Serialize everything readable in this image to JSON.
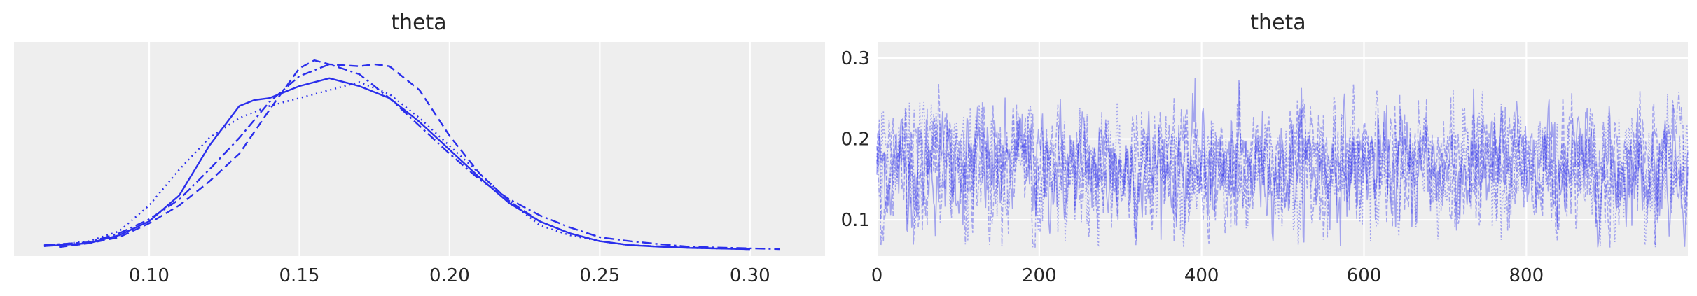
{
  "chart_data": [
    {
      "type": "line",
      "title": "theta",
      "xlabel": "",
      "ylabel": "",
      "xlim": [
        0.055,
        0.325
      ],
      "ylim": [
        0,
        1
      ],
      "x_ticks": [
        0.1,
        0.15,
        0.2,
        0.25,
        0.3
      ],
      "x_tick_labels": [
        "0.10",
        "0.15",
        "0.20",
        "0.25",
        "0.30"
      ],
      "y_ticks_shown": false,
      "grid": true,
      "color": "#2a2eec",
      "series": [
        {
          "line_style": "solid",
          "x": [
            0.065,
            0.08,
            0.09,
            0.1,
            0.11,
            0.12,
            0.13,
            0.135,
            0.14,
            0.15,
            0.16,
            0.17,
            0.18,
            0.19,
            0.2,
            0.21,
            0.22,
            0.23,
            0.24,
            0.25,
            0.26,
            0.27,
            0.28,
            0.3
          ],
          "y": [
            0.015,
            0.03,
            0.07,
            0.14,
            0.27,
            0.52,
            0.72,
            0.75,
            0.76,
            0.82,
            0.86,
            0.82,
            0.76,
            0.64,
            0.5,
            0.36,
            0.23,
            0.14,
            0.08,
            0.04,
            0.02,
            0.012,
            0.006,
            0.0
          ]
        },
        {
          "line_style": "dashed",
          "x": [
            0.07,
            0.08,
            0.09,
            0.1,
            0.11,
            0.12,
            0.13,
            0.14,
            0.15,
            0.155,
            0.16,
            0.17,
            0.175,
            0.18,
            0.19,
            0.2,
            0.21,
            0.22,
            0.23,
            0.24,
            0.25,
            0.26,
            0.28,
            0.3
          ],
          "y": [
            0.01,
            0.03,
            0.06,
            0.13,
            0.22,
            0.34,
            0.48,
            0.7,
            0.91,
            0.95,
            0.93,
            0.92,
            0.93,
            0.92,
            0.8,
            0.57,
            0.38,
            0.24,
            0.14,
            0.08,
            0.04,
            0.02,
            0.008,
            0.0
          ]
        },
        {
          "line_style": "dashdot",
          "x": [
            0.065,
            0.08,
            0.09,
            0.1,
            0.11,
            0.12,
            0.13,
            0.14,
            0.15,
            0.16,
            0.17,
            0.18,
            0.19,
            0.2,
            0.21,
            0.22,
            0.23,
            0.24,
            0.25,
            0.26,
            0.27,
            0.28,
            0.3,
            0.31
          ],
          "y": [
            0.02,
            0.035,
            0.08,
            0.15,
            0.25,
            0.4,
            0.56,
            0.74,
            0.87,
            0.93,
            0.88,
            0.76,
            0.62,
            0.48,
            0.35,
            0.25,
            0.17,
            0.11,
            0.06,
            0.04,
            0.025,
            0.012,
            0.004,
            0.0
          ]
        },
        {
          "line_style": "dotted",
          "x": [
            0.065,
            0.08,
            0.09,
            0.1,
            0.11,
            0.12,
            0.13,
            0.14,
            0.15,
            0.16,
            0.17,
            0.18,
            0.19,
            0.2,
            0.21,
            0.22,
            0.23,
            0.24,
            0.25,
            0.26,
            0.28,
            0.3
          ],
          "y": [
            0.015,
            0.04,
            0.09,
            0.22,
            0.4,
            0.56,
            0.66,
            0.72,
            0.76,
            0.8,
            0.84,
            0.78,
            0.66,
            0.52,
            0.38,
            0.24,
            0.12,
            0.07,
            0.04,
            0.02,
            0.006,
            0.0
          ]
        }
      ]
    },
    {
      "type": "line",
      "title": "theta",
      "xlabel": "",
      "ylabel": "",
      "xlim": [
        0,
        999
      ],
      "ylim": [
        0.055,
        0.32
      ],
      "x_ticks": [
        0,
        200,
        400,
        600,
        800
      ],
      "x_tick_labels": [
        "0",
        "200",
        "400",
        "600",
        "800"
      ],
      "y_ticks": [
        0.1,
        0.2,
        0.3
      ],
      "y_tick_labels": [
        "0.1",
        "0.2",
        "0.3"
      ],
      "grid": true,
      "color": "#2a2eec",
      "draws_per_chain": 1000,
      "chains": 4,
      "trace_center": 0.165,
      "trace_spread": 0.035,
      "trace_min": 0.065,
      "trace_max": 0.31,
      "series_styles": [
        "solid",
        "dashed",
        "dashdot",
        "dotted"
      ]
    }
  ]
}
